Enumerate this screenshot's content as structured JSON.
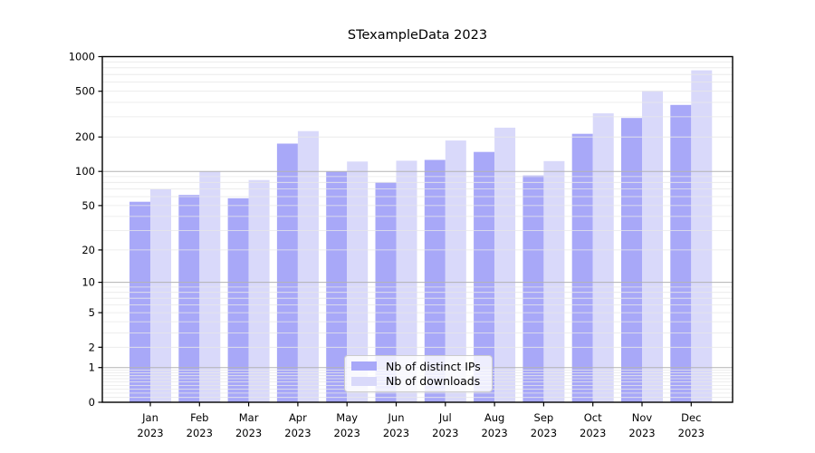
{
  "chart_data": {
    "type": "bar",
    "title": "STexampleData 2023",
    "categories": [
      "Jan 2023",
      "Feb 2023",
      "Mar 2023",
      "Apr 2023",
      "May 2023",
      "Jun 2023",
      "Jul 2023",
      "Aug 2023",
      "Sep 2023",
      "Oct 2023",
      "Nov 2023",
      "Dec 2023"
    ],
    "x_axis": {
      "months": [
        "Jan",
        "Feb",
        "Mar",
        "Apr",
        "May",
        "Jun",
        "Jul",
        "Aug",
        "Sep",
        "Oct",
        "Nov",
        "Dec"
      ],
      "year": "2023"
    },
    "y_axis": {
      "scale": "log1p",
      "ticks": [
        0,
        1,
        2,
        5,
        10,
        20,
        50,
        100,
        200,
        500,
        1000
      ],
      "range": [
        0,
        1000
      ]
    },
    "series": [
      {
        "name": "Nb of distinct IPs",
        "color": "#a8a8f8",
        "values": [
          54,
          62,
          58,
          175,
          100,
          80,
          126,
          148,
          92,
          213,
          293,
          380
        ]
      },
      {
        "name": "Nb of downloads",
        "color": "#d9d9fa",
        "values": [
          70,
          100,
          84,
          225,
          122,
          124,
          186,
          241,
          123,
          321,
          505,
          760
        ]
      }
    ],
    "legend": {
      "position": "lower center"
    },
    "grid": {
      "major_color": "#b3b3b3",
      "minor_color": "#e8e8e8",
      "axis_color": "#000000"
    }
  }
}
